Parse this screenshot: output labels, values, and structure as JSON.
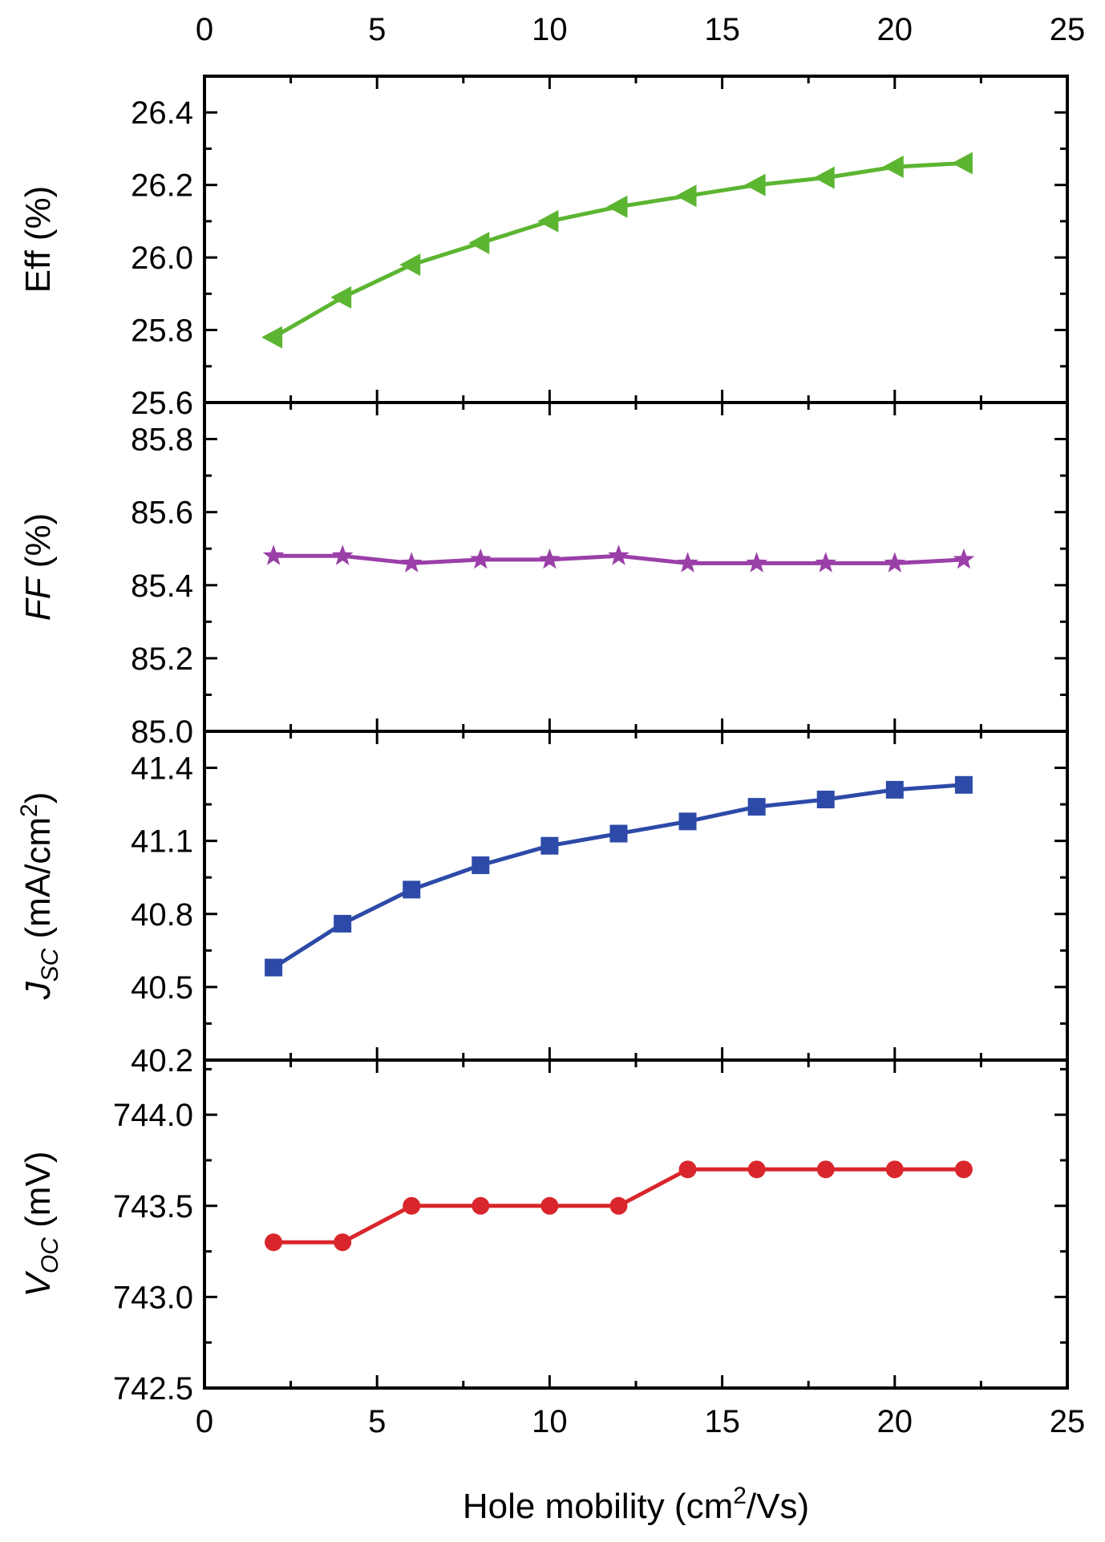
{
  "chart_data": {
    "type": "line",
    "layout": "stacked-panels-shared-x",
    "xlabel": "Hole mobility (cm²/Vs)",
    "xlabel_parts": {
      "prefix": "Hole mobility (cm",
      "sup": "2",
      "suffix": "/Vs)"
    },
    "xlim": [
      0,
      25
    ],
    "xticks": [
      "0",
      "5",
      "10",
      "15",
      "20",
      "25"
    ],
    "x": [
      2,
      4,
      6,
      8,
      10,
      12,
      14,
      16,
      18,
      20,
      22
    ],
    "panels": [
      {
        "id": "eff",
        "ylabel": "Eff (%)",
        "ylabel_parts": {
          "main": "Eff (%)",
          "italic": false
        },
        "ylim": [
          25.6,
          26.5
        ],
        "yticks": [
          "25.6",
          "25.8",
          "26.0",
          "26.2",
          "26.4"
        ],
        "color": "#5cb531",
        "marker": "triangle-left",
        "values": [
          25.78,
          25.89,
          25.98,
          26.04,
          26.1,
          26.14,
          26.17,
          26.2,
          26.22,
          26.25,
          26.26
        ]
      },
      {
        "id": "ff",
        "ylabel": "FF (%)",
        "ylabel_parts": {
          "italic_part": "FF",
          "rest": " (%)"
        },
        "ylim": [
          85.0,
          85.9
        ],
        "yticks": [
          "85.0",
          "85.2",
          "85.4",
          "85.6",
          "85.8"
        ],
        "color": "#9a3fa8",
        "marker": "star",
        "values": [
          85.48,
          85.48,
          85.46,
          85.47,
          85.47,
          85.48,
          85.46,
          85.46,
          85.46,
          85.46,
          85.47
        ]
      },
      {
        "id": "jsc",
        "ylabel": "JSC (mA/cm²)",
        "ylabel_parts": {
          "italic_part": "J",
          "sub": "SC",
          "rest": " (mA/cm",
          "sup": "2",
          "end": ")"
        },
        "ylim": [
          40.2,
          41.55
        ],
        "yticks": [
          "40.2",
          "40.5",
          "40.8",
          "41.1",
          "41.4"
        ],
        "color": "#2d4aa8",
        "marker": "square",
        "values": [
          40.58,
          40.76,
          40.9,
          41.0,
          41.08,
          41.13,
          41.18,
          41.24,
          41.27,
          41.31,
          41.33
        ]
      },
      {
        "id": "voc",
        "ylabel": "VOC (mV)",
        "ylabel_parts": {
          "italic_part": "V",
          "sub": "OC",
          "rest": " (mV)"
        },
        "ylim": [
          742.5,
          744.3
        ],
        "yticks": [
          "742.5",
          "743.0",
          "743.5",
          "744.0"
        ],
        "color": "#d9262c",
        "marker": "circle",
        "values": [
          743.3,
          743.3,
          743.5,
          743.5,
          743.5,
          743.5,
          743.7,
          743.7,
          743.7,
          743.7,
          743.7
        ]
      }
    ]
  }
}
